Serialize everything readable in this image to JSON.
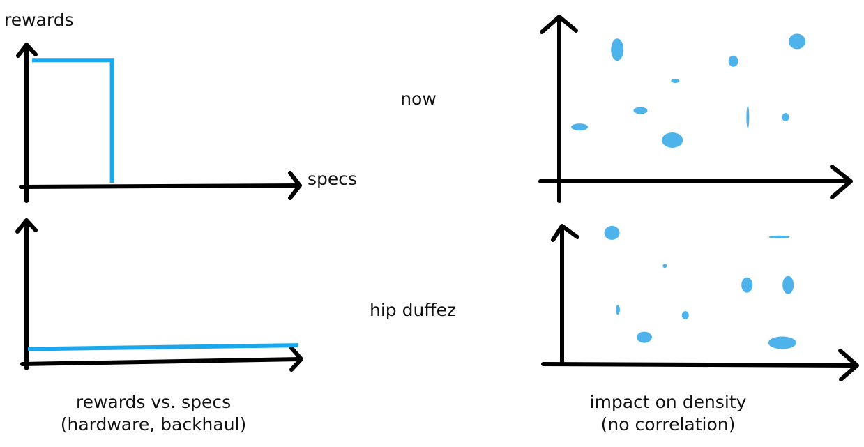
{
  "labels": {
    "y_axis": "rewards",
    "x_axis": "specs",
    "row_top": "now",
    "row_bottom": "hip duffez",
    "caption_left_line1": "rewards vs. specs",
    "caption_left_line2": "(hardware, backhaul)",
    "caption_right_line1": "impact on density",
    "caption_right_line2": "(no correlation)"
  },
  "colors": {
    "axis": "#000000",
    "line": "#1aa7ec",
    "blob": "#4db3ea"
  },
  "chart_data": [
    {
      "type": "line",
      "row": "now",
      "xlabel": "specs",
      "ylabel": "rewards",
      "x": [
        0,
        0.3,
        0.3
      ],
      "y": [
        1,
        1,
        0
      ],
      "xlim": [
        0,
        1
      ],
      "ylim": [
        0,
        1.15
      ]
    },
    {
      "type": "line",
      "row": "hip duffez",
      "x": [
        0,
        1
      ],
      "y": [
        0.12,
        0.15
      ],
      "xlim": [
        0,
        1
      ],
      "ylim": [
        0,
        1.15
      ]
    },
    {
      "type": "scatter",
      "row": "now",
      "x": [
        0.2,
        0.07,
        0.28,
        0.4,
        0.39,
        0.6,
        0.65,
        0.78,
        0.82
      ],
      "y": [
        0.8,
        0.33,
        0.43,
        0.61,
        0.25,
        0.73,
        0.39,
        0.39,
        0.85
      ]
    },
    {
      "type": "scatter",
      "row": "hip duffez",
      "x": [
        0.17,
        0.35,
        0.19,
        0.28,
        0.42,
        0.63,
        0.77,
        0.75,
        0.74
      ],
      "y": [
        0.96,
        0.72,
        0.4,
        0.2,
        0.36,
        0.58,
        0.58,
        0.16,
        0.93
      ]
    }
  ]
}
